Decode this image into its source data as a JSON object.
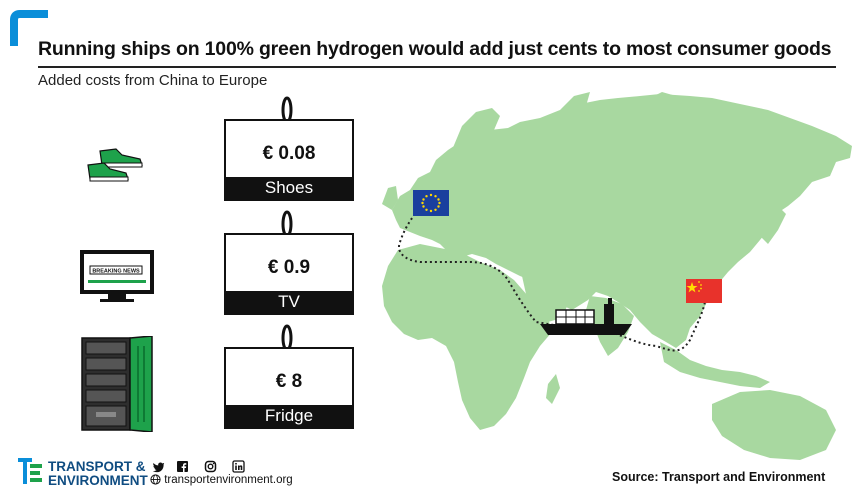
{
  "header": {
    "title": "Running ships on 100% green hydrogen would add just cents to most consumer goods",
    "subtitle": "Added costs from China to Europe"
  },
  "products": [
    {
      "price": "€ 0.08",
      "label": "Shoes",
      "icon": "sneakers-icon"
    },
    {
      "price": "€ 0.9",
      "label": "TV",
      "icon": "television-icon",
      "screen_text": "BREAKING NEWS"
    },
    {
      "price": "€ 8",
      "label": "Fridge",
      "icon": "fridge-icon"
    }
  ],
  "map": {
    "land_color": "#a8d8a0",
    "route_color": "#222222",
    "origin": "China",
    "destination": "Europe",
    "flags": [
      "eu-flag-icon",
      "china-flag-icon"
    ]
  },
  "footer": {
    "logo_line1": "TRANSPORT &",
    "logo_line2": "ENVIRONMENT",
    "website": "transportenvironment.org",
    "source": "Source: Transport and Environment",
    "social": [
      "twitter-icon",
      "facebook-icon",
      "instagram-icon",
      "linkedin-icon"
    ]
  },
  "colors": {
    "accent_blue": "#0a8ed9",
    "brand_green": "#1ea24b",
    "brand_navy": "#0f4c81"
  }
}
